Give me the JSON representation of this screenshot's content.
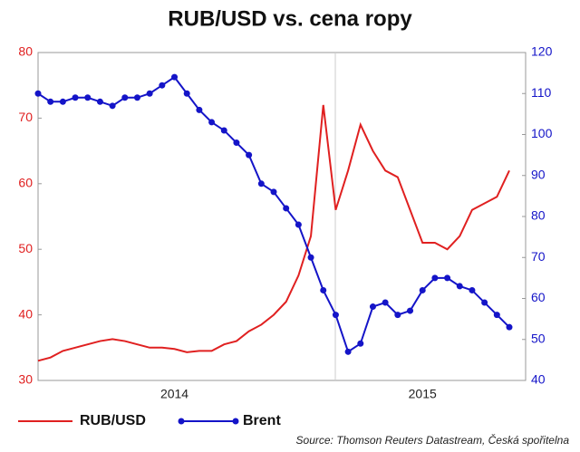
{
  "chart_data": {
    "type": "line",
    "title": "RUB/USD vs. cena ropy",
    "source": "Source: Thomson Reuters Datastream, Česká spořitelna",
    "categories": [
      null,
      null,
      null,
      null,
      null,
      null,
      null,
      null,
      null,
      null,
      null,
      "2014",
      null,
      null,
      null,
      null,
      null,
      null,
      null,
      null,
      null,
      null,
      null,
      null,
      null,
      null,
      null,
      null,
      null,
      null,
      null,
      "2015",
      null,
      null,
      null,
      null,
      null,
      null,
      null
    ],
    "series": [
      {
        "name": "RUB/USD",
        "color": "#e02020",
        "axis": "y",
        "values": [
          33,
          33.5,
          34.5,
          35,
          35.5,
          36,
          36.3,
          36,
          35.5,
          35,
          35,
          34.8,
          34.3,
          34.5,
          34.5,
          35.5,
          36,
          37.5,
          38.5,
          40,
          42,
          46,
          52,
          72,
          56,
          62,
          69,
          65,
          62,
          61,
          56,
          51,
          51,
          50,
          52,
          56,
          57,
          58,
          62
        ]
      },
      {
        "name": "Brent",
        "color": "#1414c8",
        "axis": "y2",
        "values": [
          110,
          108,
          108,
          109,
          109,
          108,
          107,
          109,
          109,
          110,
          112,
          114,
          110,
          106,
          103,
          101,
          98,
          95,
          88,
          86,
          82,
          78,
          70,
          62,
          56,
          47,
          49,
          58,
          59,
          56,
          57,
          62,
          65,
          65,
          63,
          62,
          59,
          56,
          53
        ]
      }
    ],
    "ylim": [
      30,
      80
    ],
    "yticks": [
      30,
      40,
      50,
      60,
      70,
      80
    ],
    "y2lim": [
      40,
      120
    ],
    "y2ticks": [
      40,
      50,
      60,
      70,
      80,
      90,
      100,
      110,
      120
    ]
  }
}
